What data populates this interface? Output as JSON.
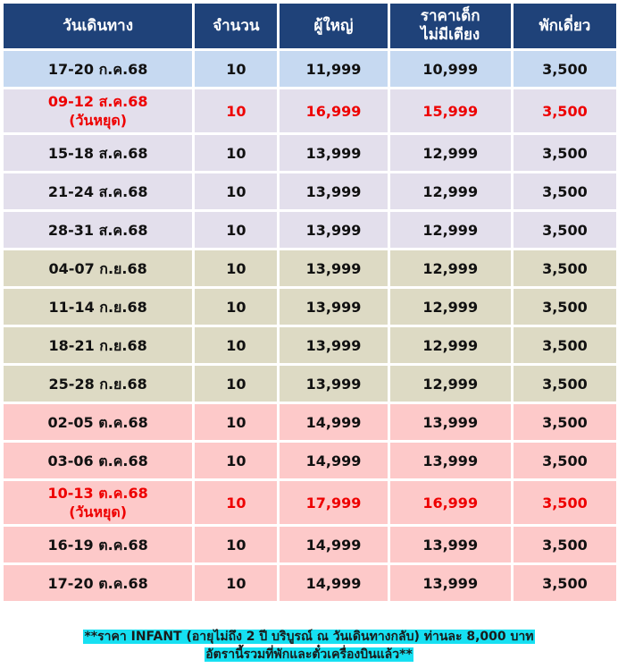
{
  "headers": [
    "วันเดินทาง",
    "จำนวน",
    "ผู้ใหญ่",
    "ราคาเด็ก\nไม่มีเตียง",
    "พักเดี่ยว"
  ],
  "rows": [
    {
      "date": "17-20 ก.ค.68",
      "seats": "10",
      "adult": "11,999",
      "child": "10,999",
      "single": "3,500",
      "bg": "#c6d9f1",
      "holiday": false
    },
    {
      "date": "09-12 ส.ค.68\n(วันหยุด)",
      "seats": "10",
      "adult": "16,999",
      "child": "15,999",
      "single": "3,500",
      "bg": "#e3dfec",
      "holiday": true
    },
    {
      "date": "15-18 ส.ค.68",
      "seats": "10",
      "adult": "13,999",
      "child": "12,999",
      "single": "3,500",
      "bg": "#e3dfec",
      "holiday": false
    },
    {
      "date": "21-24 ส.ค.68",
      "seats": "10",
      "adult": "13,999",
      "child": "12,999",
      "single": "3,500",
      "bg": "#e3dfec",
      "holiday": false
    },
    {
      "date": "28-31 ส.ค.68",
      "seats": "10",
      "adult": "13,999",
      "child": "12,999",
      "single": "3,500",
      "bg": "#e3dfec",
      "holiday": false
    },
    {
      "date": "04-07 ก.ย.68",
      "seats": "10",
      "adult": "13,999",
      "child": "12,999",
      "single": "3,500",
      "bg": "#dddac4",
      "holiday": false
    },
    {
      "date": "11-14 ก.ย.68",
      "seats": "10",
      "adult": "13,999",
      "child": "12,999",
      "single": "3,500",
      "bg": "#dddac4",
      "holiday": false
    },
    {
      "date": "18-21 ก.ย.68",
      "seats": "10",
      "adult": "13,999",
      "child": "12,999",
      "single": "3,500",
      "bg": "#dddac4",
      "holiday": false
    },
    {
      "date": "25-28 ก.ย.68",
      "seats": "10",
      "adult": "13,999",
      "child": "12,999",
      "single": "3,500",
      "bg": "#dddac4",
      "holiday": false
    },
    {
      "date": "02-05 ต.ค.68",
      "seats": "10",
      "adult": "14,999",
      "child": "13,999",
      "single": "3,500",
      "bg": "#fdc9c9",
      "holiday": false
    },
    {
      "date": "03-06 ต.ค.68",
      "seats": "10",
      "adult": "14,999",
      "child": "13,999",
      "single": "3,500",
      "bg": "#fdc9c9",
      "holiday": false
    },
    {
      "date": "10-13 ต.ค.68\n(วันหยุด)",
      "seats": "10",
      "adult": "17,999",
      "child": "16,999",
      "single": "3,500",
      "bg": "#fdc9c9",
      "holiday": true
    },
    {
      "date": "16-19 ต.ค.68",
      "seats": "10",
      "adult": "14,999",
      "child": "13,999",
      "single": "3,500",
      "bg": "#fdc9c9",
      "holiday": false
    },
    {
      "date": "17-20 ต.ค.68",
      "seats": "10",
      "adult": "14,999",
      "child": "13,999",
      "single": "3,500",
      "bg": "#fdc9c9",
      "holiday": false
    }
  ],
  "note": {
    "line1": "**ราคา INFANT (อายุไม่ถึง 2 ปี บริบูรณ์ ณ วันเดินทางกลับ) ท่านละ 8,000 บาท",
    "line2": "อัตรานี้รวมที่พักและตั๋วเครื่องบินแล้ว**"
  },
  "colors": {
    "header_bg": "#1f4279",
    "holiday_text": "#ee0000",
    "note_highlight": "#16e0f2"
  }
}
